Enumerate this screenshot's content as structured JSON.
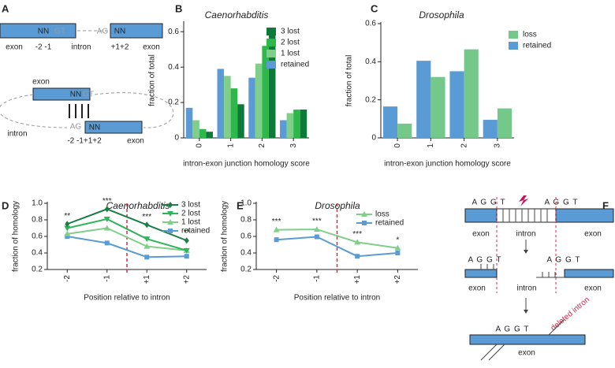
{
  "panel_labels": [
    "A",
    "B",
    "C",
    "D",
    "E",
    "F"
  ],
  "diagram_a": {
    "top": {
      "left_nn": "NN",
      "gt": "GT",
      "ag": "AG",
      "right_nn": "NN",
      "labels": [
        "exon",
        "-2 -1",
        "intron",
        "+1+2",
        "exon"
      ]
    },
    "bottom": {
      "exon_top": "exon",
      "nn_top": "NN",
      "gt": "GT",
      "intron": "intron",
      "ag": "AG",
      "nn_bottom": "NN",
      "positions": "-2 -1+1+2",
      "exon_bottom": "exon"
    }
  },
  "diagram_f": {
    "top": {
      "left_seq": "A G G T",
      "right_seq": "A G G T",
      "labels": [
        "exon",
        "intron",
        "exon"
      ]
    },
    "middle": {
      "left_seq": "A G G T",
      "right_seq": "A G G T",
      "labels": [
        "exon",
        "intron",
        "exon"
      ]
    },
    "bottom": {
      "seq": "A G G T",
      "deleted": "deleted intron",
      "exon": "exon"
    }
  },
  "chart_data": [
    {
      "type": "bar",
      "title": "Caenorhabditis",
      "xlabel": "intron-exon  junction homology score",
      "ylabel": "fraction of total",
      "categories": [
        "0",
        "1",
        "2",
        "3"
      ],
      "series": [
        {
          "name": "retained",
          "color": "#5b9bd5",
          "values": [
            0.17,
            0.39,
            0.34,
            0.1
          ]
        },
        {
          "name": "1 lost",
          "color": "#7fcf8a",
          "values": [
            0.1,
            0.35,
            0.42,
            0.14
          ]
        },
        {
          "name": "2 lost",
          "color": "#2eb84c",
          "values": [
            0.05,
            0.28,
            0.52,
            0.16
          ]
        },
        {
          "name": "3 lost",
          "color": "#0d7a3a",
          "values": [
            0.035,
            0.19,
            0.62,
            0.16
          ]
        }
      ],
      "ylim": [
        0,
        0.65
      ],
      "yticks": [
        0,
        0.2,
        0.4,
        0.6
      ],
      "legend": "upper right"
    },
    {
      "type": "bar",
      "title": "Drosophila",
      "xlabel": "intron-exon  junction homology score",
      "ylabel": "fraction of total",
      "categories": [
        "0",
        "1",
        "2",
        "3"
      ],
      "series": [
        {
          "name": "retained",
          "color": "#5b9bd5",
          "values": [
            0.165,
            0.405,
            0.35,
            0.095
          ]
        },
        {
          "name": "loss",
          "color": "#74c98a",
          "values": [
            0.075,
            0.32,
            0.465,
            0.155
          ]
        }
      ],
      "ylim": [
        0,
        0.6
      ],
      "yticks": [
        0,
        0.2,
        0.4,
        0.6
      ],
      "legend": "upper right"
    },
    {
      "type": "line",
      "title": "Caenorhabditis",
      "xlabel": "Position relative to intron",
      "ylabel": "fraction of homology",
      "categories": [
        "-2",
        "-1",
        "+1",
        "+2"
      ],
      "series": [
        {
          "name": "retained",
          "color": "#5b9bd5",
          "marker": "square",
          "values": [
            0.6,
            0.52,
            0.35,
            0.36
          ]
        },
        {
          "name": "1 lost",
          "color": "#7fcf8a",
          "marker": "triangle-up",
          "values": [
            0.63,
            0.7,
            0.48,
            0.43
          ]
        },
        {
          "name": "2 lost",
          "color": "#2eb45a",
          "marker": "triangle-down",
          "values": [
            0.7,
            0.81,
            0.57,
            0.43
          ]
        },
        {
          "name": "3 lost",
          "color": "#1a7d44",
          "marker": "diamond",
          "values": [
            0.75,
            0.93,
            0.74,
            0.55
          ]
        }
      ],
      "annotations": [
        "**",
        "***",
        "***",
        "**"
      ],
      "ylim": [
        0.2,
        1.0
      ],
      "yticks": [
        0.2,
        0.4,
        0.6,
        0.8,
        {
          "value": 1,
          "label": "1.0"
        }
      ],
      "legend": "upper right"
    },
    {
      "type": "line",
      "title": "Drosophila",
      "xlabel": "Position relative to intron",
      "ylabel": "fraction of homology",
      "categories": [
        "-2",
        "-1",
        "+1",
        "+2"
      ],
      "series": [
        {
          "name": "retained",
          "color": "#5b9bd5",
          "marker": "square",
          "values": [
            0.56,
            0.595,
            0.36,
            0.4
          ]
        },
        {
          "name": "loss",
          "color": "#7fcf8a",
          "marker": "triangle-up",
          "values": [
            0.68,
            0.685,
            0.53,
            0.46
          ]
        }
      ],
      "annotations": [
        "***",
        "***",
        "***",
        "*"
      ],
      "ylim": [
        0.2,
        1.0
      ],
      "yticks": [
        0.2,
        0.4,
        0.6,
        0.8,
        {
          "value": 1,
          "label": "1.0"
        }
      ],
      "legend": "upper right"
    }
  ]
}
